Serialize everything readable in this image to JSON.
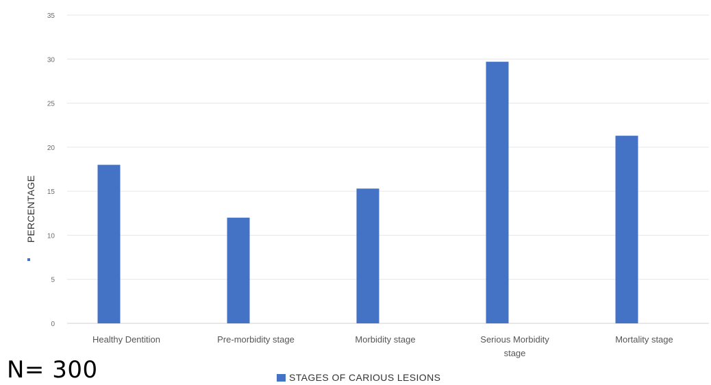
{
  "chart_data": {
    "type": "bar",
    "categories": [
      "Healthy Dentition",
      "Pre-morbidity stage",
      "Morbidity stage",
      "Serious Morbidity stage",
      "Mortality stage"
    ],
    "series": [
      {
        "name": "STAGES OF CARIOUS LESIONS",
        "values": [
          18,
          12,
          15.3,
          29.7,
          21.3
        ]
      }
    ],
    "ylabel": "PERCENTAGE",
    "ylim": [
      0,
      35
    ],
    "yticks": [
      0,
      5,
      10,
      15,
      20,
      25,
      30,
      35
    ],
    "grid": true,
    "legend": "bottom-center",
    "bar_color": "#4472c4"
  },
  "note": "N= 300"
}
